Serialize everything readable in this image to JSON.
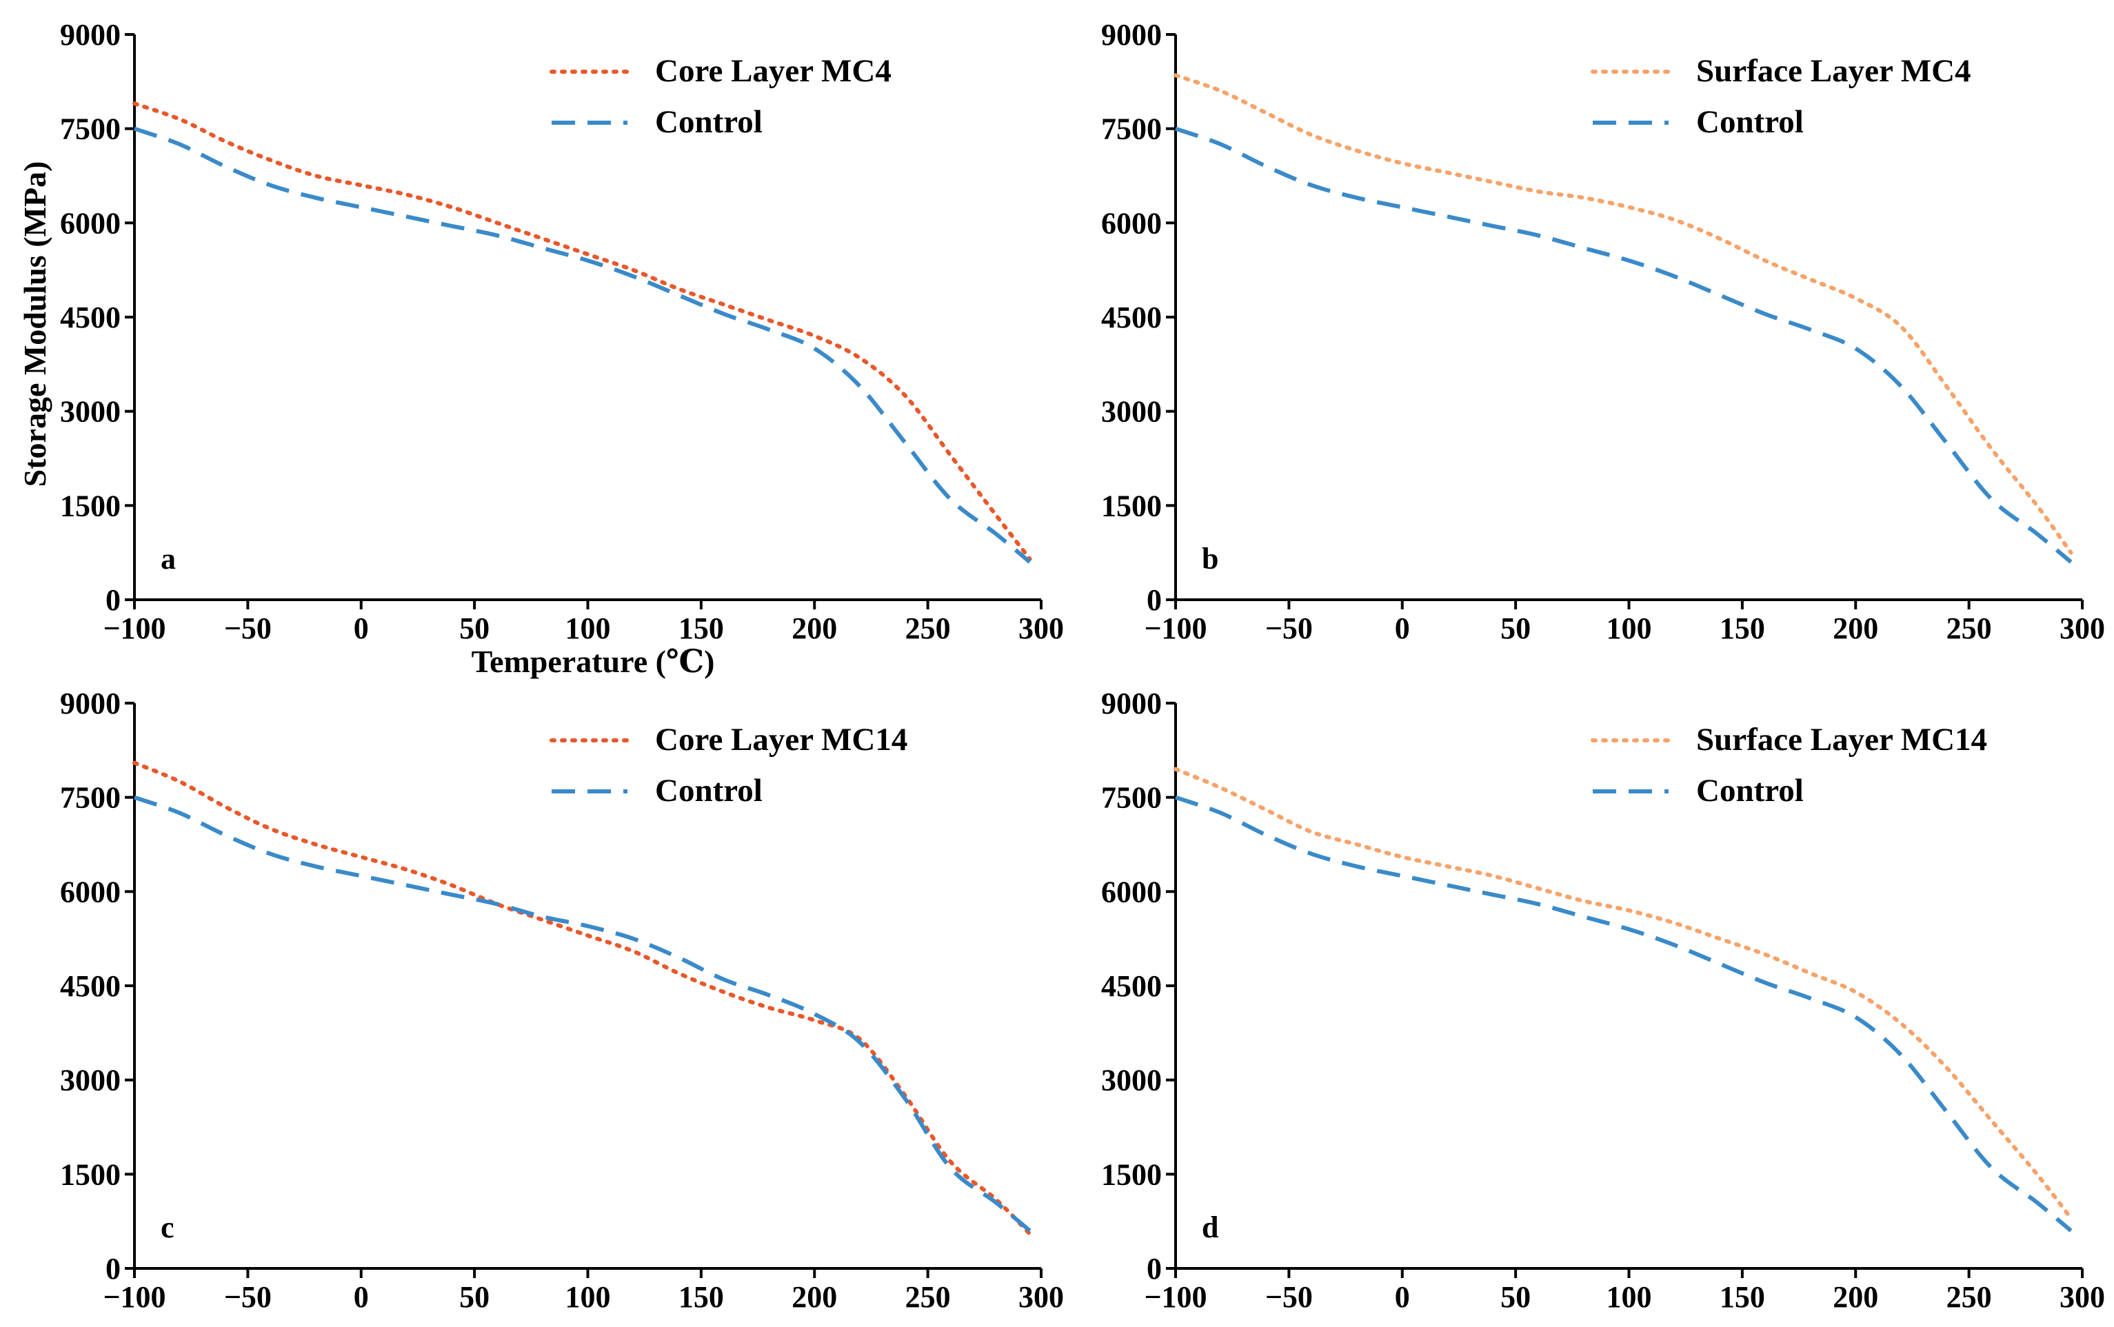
{
  "chart_data": [
    {
      "type": "line",
      "panel_label": "a",
      "xlabel": "Temperature (℃)",
      "ylabel": "Storage Modulus (MPa)",
      "xlim": [
        -100,
        300
      ],
      "ylim": [
        0,
        9000
      ],
      "xticks": [
        "−100",
        "−50",
        "0",
        "50",
        "100",
        "150",
        "200",
        "250",
        "300"
      ],
      "yticks": [
        "0",
        "1500",
        "3000",
        "4500",
        "6000",
        "7500",
        "9000"
      ],
      "legend_position": "top-right",
      "series": [
        {
          "name": "Core Layer MC4",
          "color": "#e8582a",
          "style": "dotted",
          "x": [
            -100,
            -80,
            -60,
            -40,
            -20,
            0,
            20,
            40,
            60,
            80,
            100,
            120,
            140,
            160,
            180,
            200,
            220,
            240,
            260,
            280,
            295
          ],
          "y": [
            7900,
            7650,
            7300,
            7000,
            6750,
            6600,
            6450,
            6250,
            6000,
            5750,
            5500,
            5250,
            4950,
            4700,
            4450,
            4200,
            3850,
            3250,
            2300,
            1350,
            650
          ]
        },
        {
          "name": "Control",
          "color": "#3a8ac9",
          "style": "dashed",
          "x": [
            -100,
            -80,
            -60,
            -40,
            -20,
            0,
            20,
            40,
            60,
            80,
            100,
            120,
            140,
            160,
            180,
            200,
            220,
            240,
            260,
            280,
            295
          ],
          "y": [
            7500,
            7250,
            6900,
            6600,
            6400,
            6250,
            6100,
            5950,
            5800,
            5600,
            5400,
            5150,
            4850,
            4550,
            4300,
            4000,
            3400,
            2500,
            1600,
            1050,
            600
          ]
        }
      ]
    },
    {
      "type": "line",
      "panel_label": "b",
      "xlim": [
        -100,
        300
      ],
      "ylim": [
        0,
        9000
      ],
      "xticks": [
        "−100",
        "−50",
        "0",
        "50",
        "100",
        "150",
        "200",
        "250",
        "300"
      ],
      "yticks": [
        "0",
        "1500",
        "3000",
        "4500",
        "6000",
        "7500",
        "9000"
      ],
      "legend_position": "top-right",
      "series": [
        {
          "name": "Surface Layer MC4",
          "color": "#f5a36a",
          "style": "dotted",
          "x": [
            -100,
            -80,
            -60,
            -40,
            -20,
            0,
            20,
            40,
            60,
            80,
            100,
            120,
            140,
            160,
            180,
            200,
            220,
            240,
            260,
            280,
            295
          ],
          "y": [
            8350,
            8100,
            7750,
            7400,
            7150,
            6950,
            6800,
            6650,
            6500,
            6400,
            6250,
            6050,
            5750,
            5400,
            5100,
            4800,
            4350,
            3400,
            2400,
            1500,
            750
          ]
        },
        {
          "name": "Control",
          "color": "#3a8ac9",
          "style": "dashed",
          "x": [
            -100,
            -80,
            -60,
            -40,
            -20,
            0,
            20,
            40,
            60,
            80,
            100,
            120,
            140,
            160,
            180,
            200,
            220,
            240,
            260,
            280,
            295
          ],
          "y": [
            7500,
            7250,
            6900,
            6600,
            6400,
            6250,
            6100,
            5950,
            5800,
            5600,
            5400,
            5150,
            4850,
            4550,
            4300,
            4000,
            3400,
            2500,
            1600,
            1050,
            600
          ]
        }
      ]
    },
    {
      "type": "line",
      "panel_label": "c",
      "xlim": [
        -100,
        300
      ],
      "ylim": [
        0,
        9000
      ],
      "xticks": [
        "−100",
        "−50",
        "0",
        "50",
        "100",
        "150",
        "200",
        "250",
        "300"
      ],
      "yticks": [
        "0",
        "1500",
        "3000",
        "4500",
        "6000",
        "7500",
        "9000"
      ],
      "legend_position": "top-right",
      "series": [
        {
          "name": "Core Layer MC14",
          "color": "#e8582a",
          "style": "dotted",
          "x": [
            -100,
            -80,
            -60,
            -40,
            -20,
            0,
            20,
            40,
            60,
            80,
            100,
            120,
            140,
            160,
            180,
            200,
            220,
            240,
            260,
            280,
            295
          ],
          "y": [
            8050,
            7750,
            7350,
            7000,
            6750,
            6550,
            6350,
            6100,
            5800,
            5550,
            5300,
            5050,
            4700,
            4400,
            4150,
            3950,
            3650,
            2750,
            1700,
            1100,
            550
          ]
        },
        {
          "name": "Control",
          "color": "#3a8ac9",
          "style": "dashed",
          "x": [
            -100,
            -80,
            -60,
            -40,
            -20,
            0,
            20,
            40,
            60,
            80,
            100,
            120,
            140,
            160,
            180,
            200,
            220,
            240,
            260,
            280,
            295
          ],
          "y": [
            7500,
            7250,
            6900,
            6600,
            6400,
            6250,
            6100,
            5950,
            5800,
            5600,
            5450,
            5250,
            4950,
            4600,
            4350,
            4050,
            3600,
            2700,
            1600,
            1050,
            600
          ]
        }
      ]
    },
    {
      "type": "line",
      "panel_label": "d",
      "xlim": [
        -100,
        300
      ],
      "ylim": [
        0,
        9000
      ],
      "xticks": [
        "−100",
        "−50",
        "0",
        "50",
        "100",
        "150",
        "200",
        "250",
        "300"
      ],
      "yticks": [
        "0",
        "1500",
        "3000",
        "4500",
        "6000",
        "7500",
        "9000"
      ],
      "legend_position": "top-right",
      "series": [
        {
          "name": "Surface Layer MC14",
          "color": "#f5a36a",
          "style": "dotted",
          "x": [
            -100,
            -80,
            -60,
            -40,
            -20,
            0,
            20,
            40,
            60,
            80,
            100,
            120,
            140,
            160,
            180,
            200,
            220,
            240,
            260,
            280,
            295
          ],
          "y": [
            7950,
            7650,
            7300,
            6950,
            6750,
            6550,
            6400,
            6250,
            6050,
            5850,
            5700,
            5500,
            5250,
            5000,
            4700,
            4400,
            3900,
            3200,
            2350,
            1500,
            800
          ]
        },
        {
          "name": "Control",
          "color": "#3a8ac9",
          "style": "dashed",
          "x": [
            -100,
            -80,
            -60,
            -40,
            -20,
            0,
            20,
            40,
            60,
            80,
            100,
            120,
            140,
            160,
            180,
            200,
            220,
            240,
            260,
            280,
            295
          ],
          "y": [
            7500,
            7250,
            6900,
            6600,
            6400,
            6250,
            6100,
            5950,
            5800,
            5600,
            5400,
            5150,
            4850,
            4550,
            4300,
            4000,
            3400,
            2500,
            1600,
            1050,
            600
          ]
        }
      ]
    }
  ]
}
